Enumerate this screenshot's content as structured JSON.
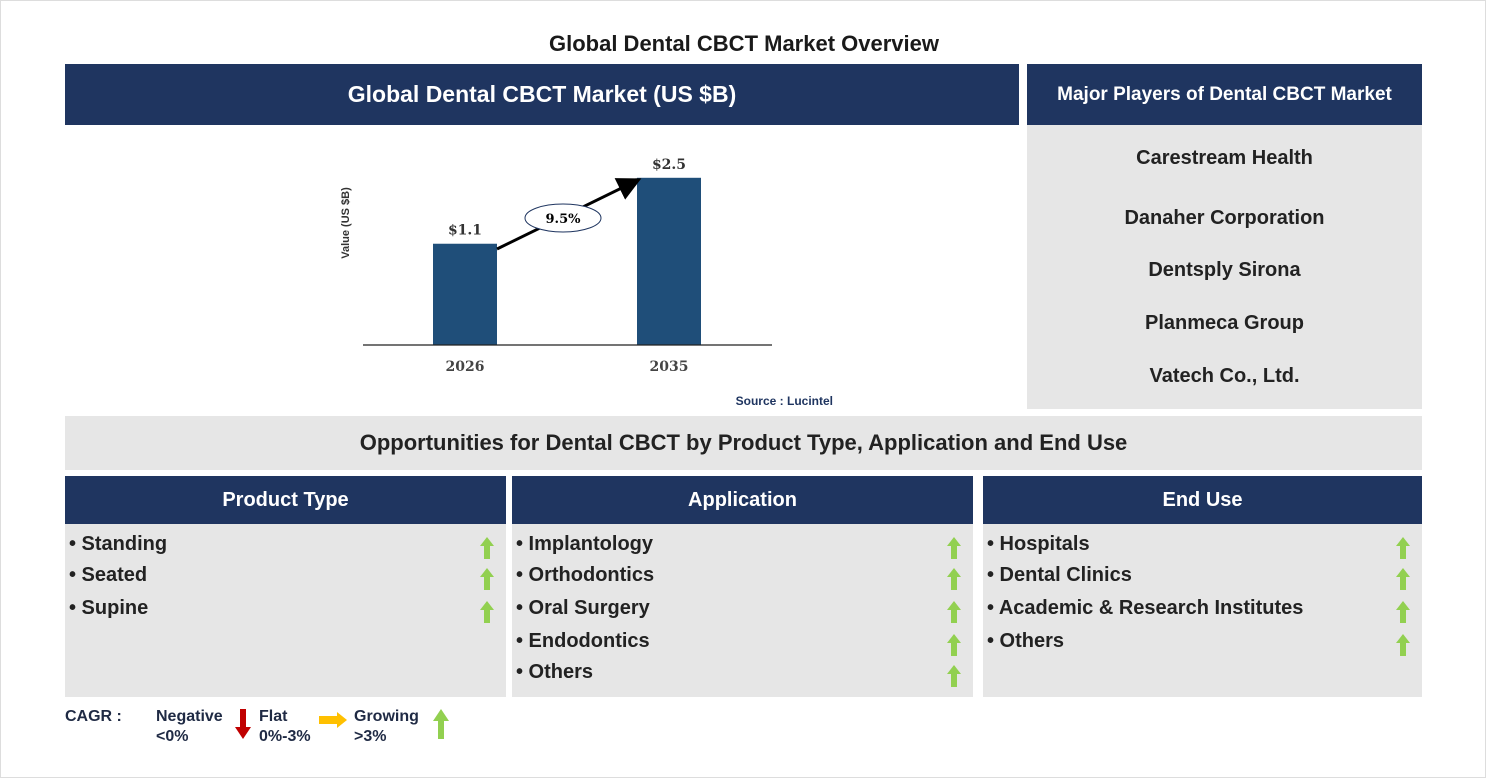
{
  "title": "Global Dental CBCT Market Overview",
  "chart_panel": {
    "header": "Global Dental CBCT Market (US $B)",
    "source": "Source : Lucintel"
  },
  "chart_data": {
    "type": "bar",
    "title": "",
    "ylabel": "Value (US $B)",
    "xlabel": "",
    "categories": [
      "2026",
      "2035"
    ],
    "values": [
      1.1,
      2.5
    ],
    "data_labels": [
      "$1.1",
      "$2.5"
    ],
    "annotation": "9.5%",
    "bar_color": "#1f4e79",
    "grid": false
  },
  "players": {
    "header": "Major Players of Dental CBCT Market",
    "items": [
      "Carestream Health",
      "Danaher Corporation",
      "Dentsply Sirona",
      "Planmeca Group",
      "Vatech Co., Ltd."
    ]
  },
  "opportunities": {
    "title": "Opportunities for Dental CBCT by Product Type, Application and End Use",
    "columns": [
      {
        "header": "Product Type",
        "items": [
          "• Standing",
          "• Seated",
          "• Supine"
        ],
        "trend": [
          "growing",
          "growing",
          "growing"
        ]
      },
      {
        "header": "Application",
        "items": [
          "• Implantology",
          "• Orthodontics",
          "• Oral Surgery",
          "• Endodontics",
          "• Others"
        ],
        "trend": [
          "growing",
          "growing",
          "growing",
          "growing",
          "growing"
        ]
      },
      {
        "header": "End Use",
        "items": [
          "• Hospitals",
          "• Dental Clinics",
          "• Academic & Research Institutes",
          "• Others"
        ],
        "trend": [
          "growing",
          "growing",
          "growing",
          "growing"
        ]
      }
    ]
  },
  "legend": {
    "label": "CAGR :",
    "negative": {
      "name": "Negative",
      "range": "<0%",
      "color": "#c00000"
    },
    "flat": {
      "name": "Flat",
      "range": "0%-3%",
      "color": "#ffc000"
    },
    "growing": {
      "name": "Growing",
      "range": ">3%",
      "color": "#92d050"
    }
  }
}
